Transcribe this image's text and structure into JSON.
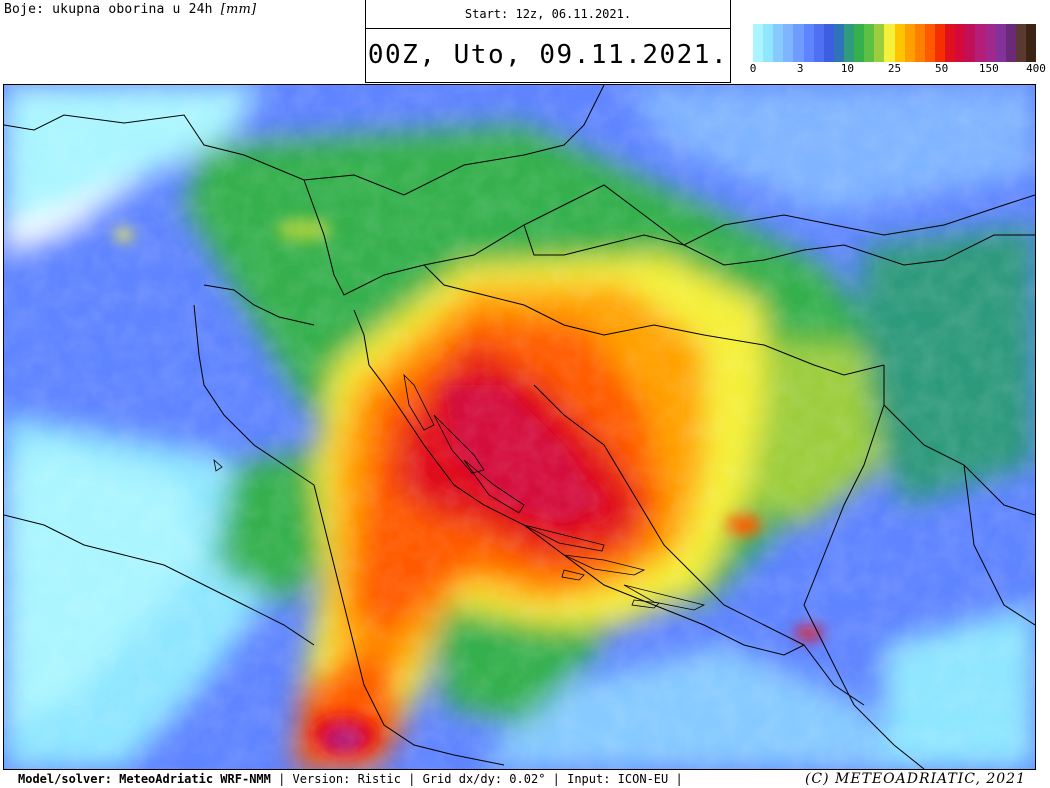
{
  "header": {
    "description": "Boje: ukupna oborina u 24h",
    "unit": "[mm]",
    "start": "Start: 12z, 06.11.2021.",
    "valid": "00Z, Uto, 09.11.2021."
  },
  "legend": {
    "colors": [
      "#aaf5ff",
      "#8ee6ff",
      "#86caff",
      "#7fb4ff",
      "#6e9cff",
      "#5f84ff",
      "#4f70f0",
      "#3c5ee0",
      "#2f74b8",
      "#2f9a7c",
      "#36b04d",
      "#5cc045",
      "#9ccd3c",
      "#f5f03a",
      "#ffc400",
      "#ffa000",
      "#ff8000",
      "#ff5a00",
      "#f43000",
      "#e0101e",
      "#d40a3c",
      "#c0105a",
      "#b41e78",
      "#a0288c",
      "#82329a",
      "#6a2a78",
      "#5a3a30",
      "#3c2414"
    ],
    "ticks": [
      "0",
      "3",
      "10",
      "25",
      "50",
      "150",
      "400"
    ]
  },
  "footer": {
    "model_label": "Model/solver:",
    "model": "MeteoAdriatic WRF-NMM",
    "version": "| Version: Ristic | Grid dx/dy: 0.02° | Input: ICON-EU |",
    "copyright": "(C) METEOADRIATIC, 2021"
  }
}
